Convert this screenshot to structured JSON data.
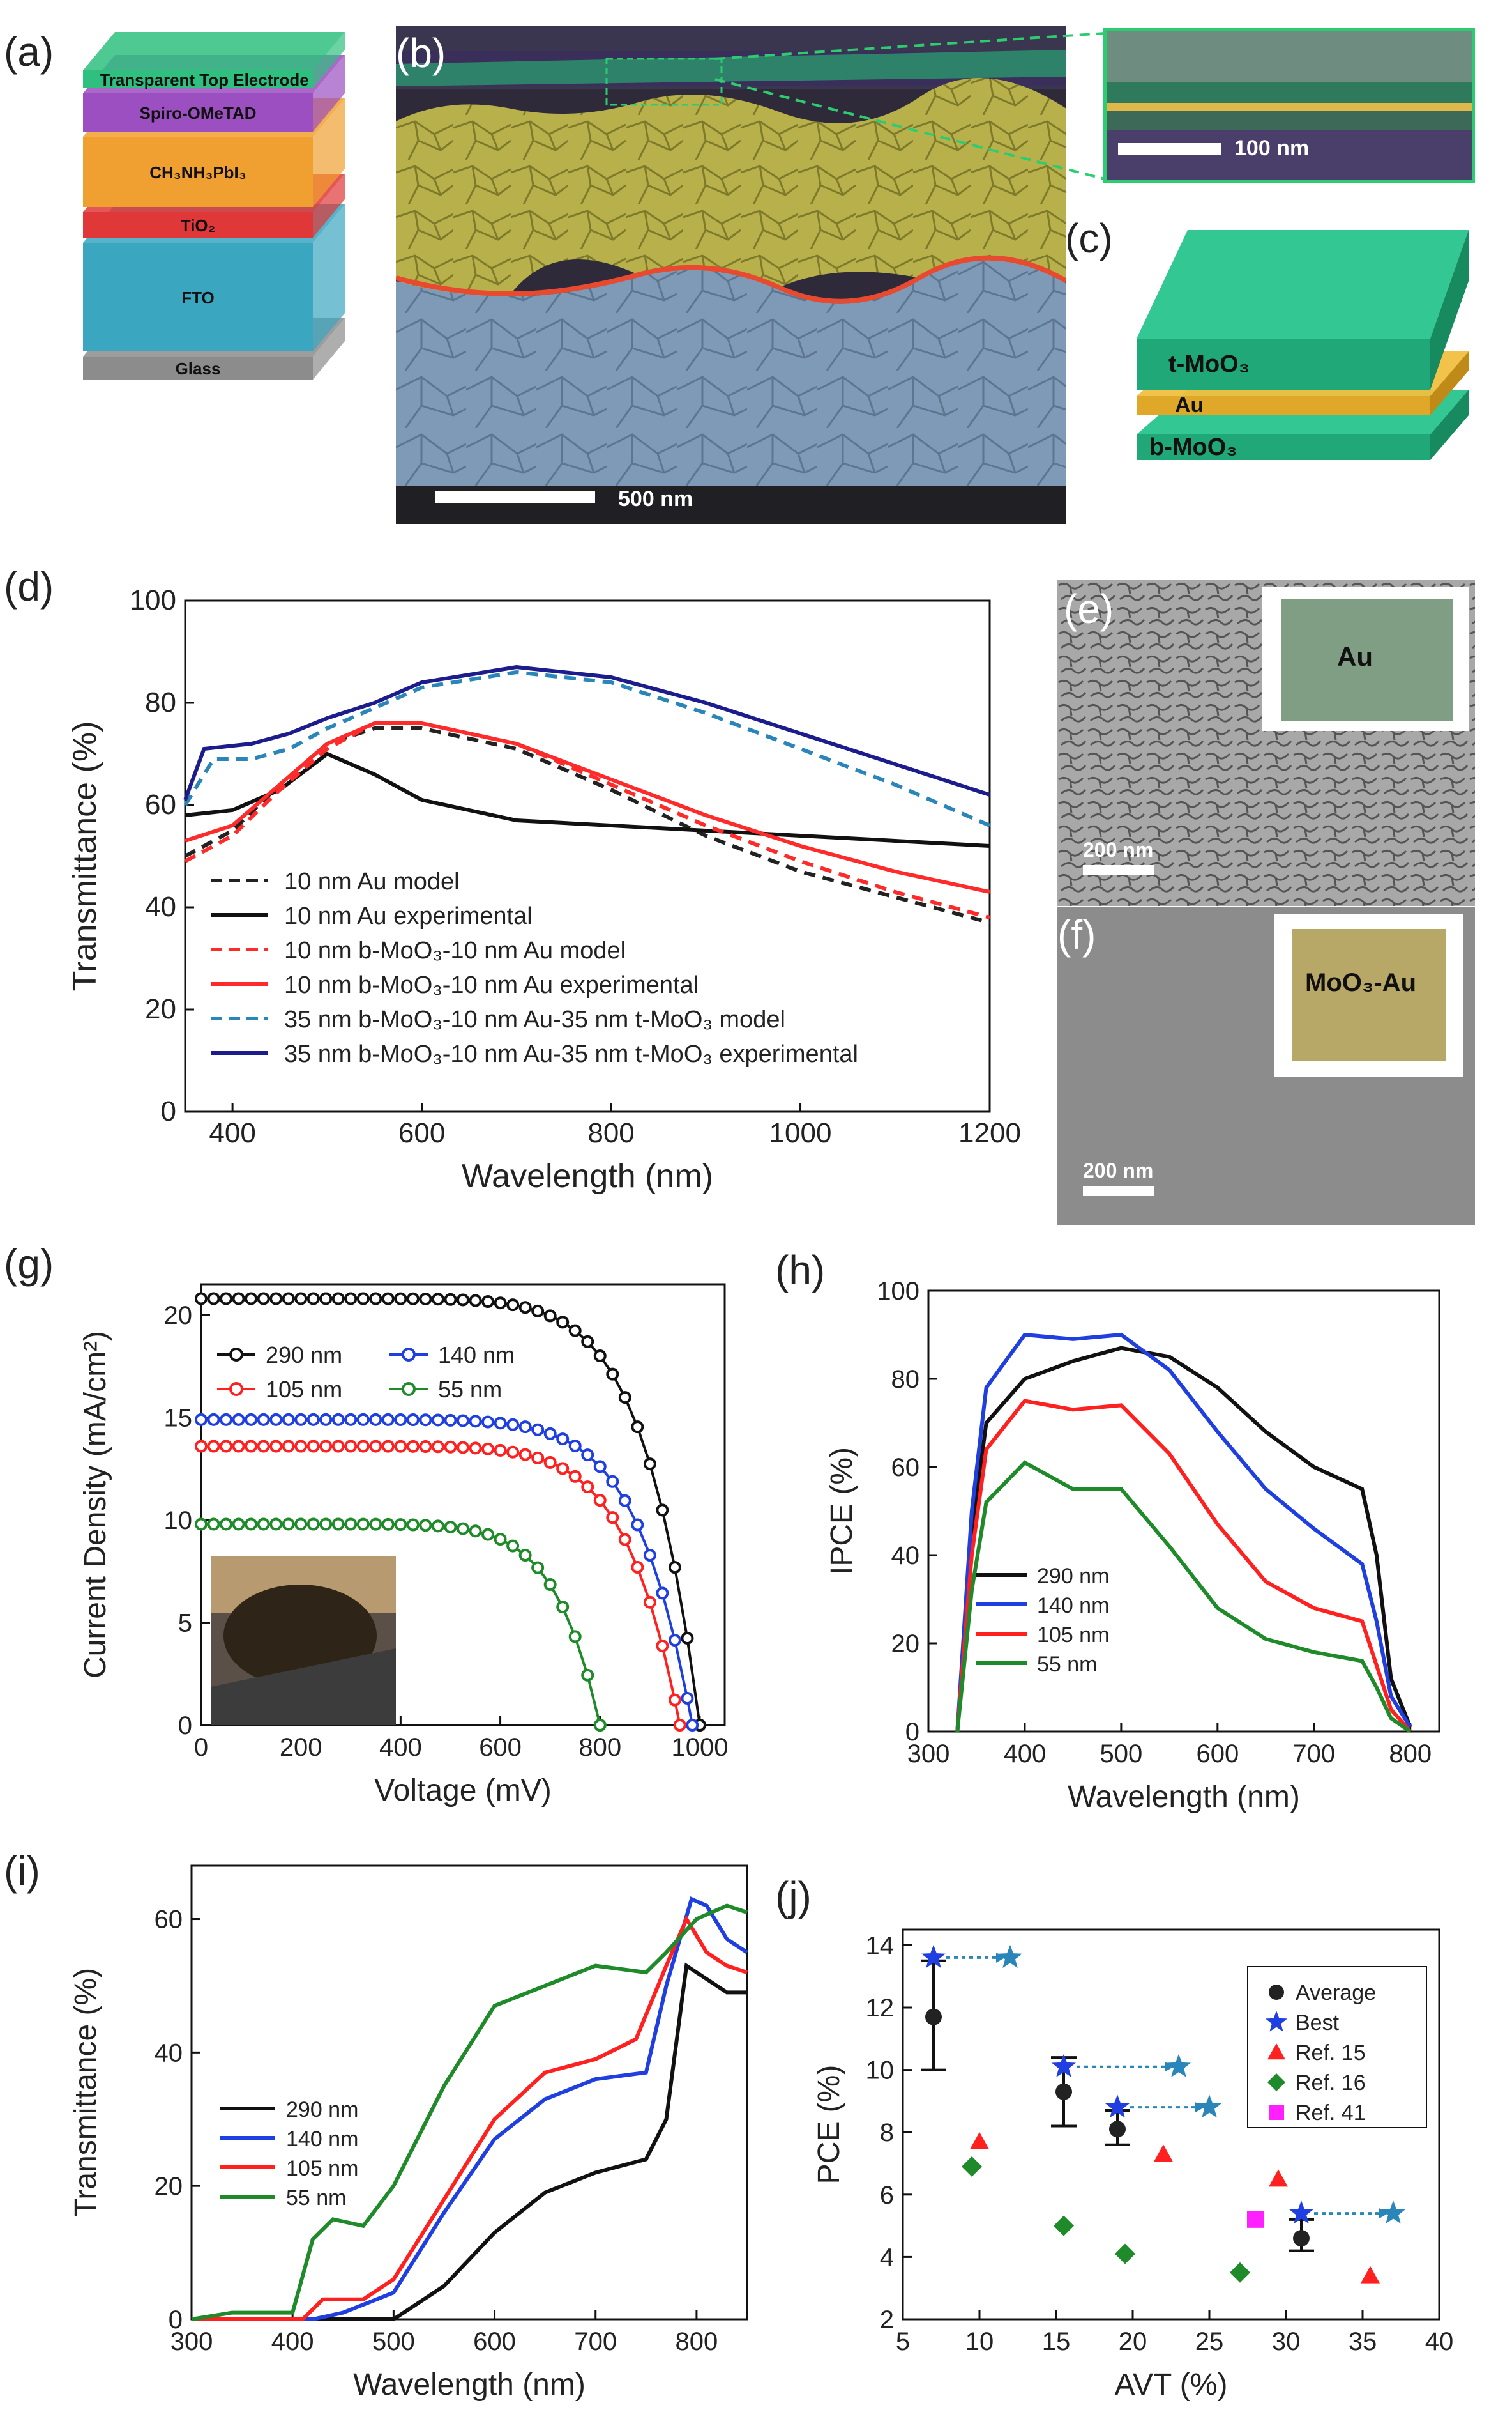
{
  "panels": {
    "a": {
      "letter": "(a)",
      "layers": [
        "Transparent Top Electrode",
        "Spiro-OMeTAD",
        "CH₃NH₃PbI₃",
        "TiO₂",
        "FTO",
        "Glass"
      ],
      "colors": [
        "#2fbf7e",
        "#9b4fc0",
        "#f0a030",
        "#e03838",
        "#3aa6c0",
        "#8c8c8c"
      ]
    },
    "b": {
      "letter": "(b)",
      "scale": "500 nm",
      "inset_scale": "100 nm"
    },
    "c": {
      "letter": "(c)",
      "layers": [
        "t-MoO₃",
        "Au",
        "b-MoO₃"
      ]
    },
    "e": {
      "letter": "(e)",
      "inset": "Au",
      "scale": "200 nm"
    },
    "f": {
      "letter": "(f)",
      "inset": "MoO₃-Au",
      "scale": "200 nm"
    }
  },
  "chart_data": [
    {
      "id": "d",
      "letter": "(d)",
      "type": "line",
      "xlabel": "Wavelength (nm)",
      "ylabel": "Transmittance (%)",
      "xlim": [
        350,
        1200
      ],
      "ylim": [
        0,
        100
      ],
      "xticks": [
        400,
        600,
        800,
        1000,
        1200
      ],
      "yticks": [
        0,
        20,
        40,
        60,
        80,
        100
      ],
      "series": [
        {
          "name": "10 nm Au model",
          "color": "#222222",
          "dash": true,
          "points": [
            [
              350,
              50
            ],
            [
              400,
              55
            ],
            [
              450,
              64
            ],
            [
              500,
              72
            ],
            [
              550,
              75
            ],
            [
              600,
              75
            ],
            [
              700,
              71
            ],
            [
              800,
              63
            ],
            [
              900,
              54
            ],
            [
              1000,
              47
            ],
            [
              1100,
              42
            ],
            [
              1200,
              37
            ]
          ]
        },
        {
          "name": "10 nm Au experimental",
          "color": "#111111",
          "dash": false,
          "points": [
            [
              350,
              58
            ],
            [
              400,
              59
            ],
            [
              450,
              63
            ],
            [
              500,
              70
            ],
            [
              550,
              66
            ],
            [
              600,
              61
            ],
            [
              700,
              57
            ],
            [
              800,
              56
            ],
            [
              900,
              55
            ],
            [
              1000,
              54
            ],
            [
              1100,
              53
            ],
            [
              1200,
              52
            ]
          ]
        },
        {
          "name": "10 nm b-MoO₃-10 nm Au model",
          "color": "#ff2a2a",
          "dash": true,
          "points": [
            [
              350,
              49
            ],
            [
              400,
              54
            ],
            [
              450,
              63
            ],
            [
              500,
              71
            ],
            [
              550,
              76
            ],
            [
              600,
              76
            ],
            [
              700,
              72
            ],
            [
              800,
              64
            ],
            [
              900,
              56
            ],
            [
              1000,
              49
            ],
            [
              1100,
              43
            ],
            [
              1200,
              38
            ]
          ]
        },
        {
          "name": "10 nm b-MoO₃-10 nm Au experimental",
          "color": "#ff2a2a",
          "dash": false,
          "points": [
            [
              350,
              53
            ],
            [
              400,
              56
            ],
            [
              450,
              64
            ],
            [
              500,
              72
            ],
            [
              550,
              76
            ],
            [
              600,
              76
            ],
            [
              700,
              72
            ],
            [
              800,
              65
            ],
            [
              900,
              58
            ],
            [
              1000,
              52
            ],
            [
              1100,
              47
            ],
            [
              1200,
              43
            ]
          ]
        },
        {
          "name": "35 nm b-MoO₃-10 nm Au-35 nm t-MoO₃ model",
          "color": "#2a86b8",
          "dash": true,
          "points": [
            [
              350,
              60
            ],
            [
              380,
              69
            ],
            [
              420,
              69
            ],
            [
              460,
              71
            ],
            [
              500,
              75
            ],
            [
              550,
              79
            ],
            [
              600,
              83
            ],
            [
              700,
              86
            ],
            [
              800,
              84
            ],
            [
              900,
              78
            ],
            [
              1000,
              71
            ],
            [
              1100,
              64
            ],
            [
              1200,
              56
            ]
          ]
        },
        {
          "name": "35 nm b-MoO₃-10 nm Au-35 nm t-MoO₃ experimental",
          "color": "#1c1c8c",
          "dash": false,
          "points": [
            [
              350,
              61
            ],
            [
              370,
              71
            ],
            [
              420,
              72
            ],
            [
              460,
              74
            ],
            [
              500,
              77
            ],
            [
              550,
              80
            ],
            [
              600,
              84
            ],
            [
              700,
              87
            ],
            [
              800,
              85
            ],
            [
              900,
              80
            ],
            [
              1000,
              74
            ],
            [
              1100,
              68
            ],
            [
              1200,
              62
            ]
          ]
        }
      ]
    },
    {
      "id": "g",
      "letter": "(g)",
      "type": "line",
      "xlabel": "Voltage (mV)",
      "ylabel": "Current Density (mA/cm²)",
      "xlim": [
        0,
        1050
      ],
      "ylim": [
        0,
        21.5
      ],
      "xticks": [
        0,
        200,
        400,
        600,
        800,
        1000
      ],
      "yticks": [
        0,
        5,
        10,
        15,
        20
      ],
      "series": [
        {
          "name": "290 nm",
          "color": "#111111",
          "jsc": 20.8,
          "voc": 1000
        },
        {
          "name": "140 nm",
          "color": "#1f3fe0",
          "jsc": 14.9,
          "voc": 985
        },
        {
          "name": "105 nm",
          "color": "#ff2020",
          "jsc": 13.6,
          "voc": 960
        },
        {
          "name": "55 nm",
          "color": "#1f8a2a",
          "jsc": 9.8,
          "voc": 800
        }
      ]
    },
    {
      "id": "h",
      "letter": "(h)",
      "type": "line",
      "xlabel": "Wavelength (nm)",
      "ylabel": "IPCE (%)",
      "xlim": [
        300,
        830
      ],
      "ylim": [
        0,
        100
      ],
      "xticks": [
        300,
        400,
        500,
        600,
        700,
        800
      ],
      "yticks": [
        0,
        20,
        40,
        60,
        80,
        100
      ],
      "series": [
        {
          "name": "290 nm",
          "color": "#111111",
          "points": [
            [
              330,
              0
            ],
            [
              345,
              45
            ],
            [
              360,
              70
            ],
            [
              400,
              80
            ],
            [
              450,
              84
            ],
            [
              500,
              87
            ],
            [
              550,
              85
            ],
            [
              600,
              78
            ],
            [
              650,
              68
            ],
            [
              700,
              60
            ],
            [
              750,
              55
            ],
            [
              765,
              40
            ],
            [
              780,
              12
            ],
            [
              800,
              1
            ]
          ]
        },
        {
          "name": "140 nm",
          "color": "#1f3fe0",
          "points": [
            [
              330,
              0
            ],
            [
              345,
              50
            ],
            [
              360,
              78
            ],
            [
              400,
              90
            ],
            [
              450,
              89
            ],
            [
              500,
              90
            ],
            [
              550,
              82
            ],
            [
              600,
              68
            ],
            [
              650,
              55
            ],
            [
              700,
              46
            ],
            [
              750,
              38
            ],
            [
              765,
              25
            ],
            [
              780,
              8
            ],
            [
              800,
              1
            ]
          ]
        },
        {
          "name": "105 nm",
          "color": "#ff2020",
          "points": [
            [
              330,
              0
            ],
            [
              345,
              40
            ],
            [
              360,
              64
            ],
            [
              400,
              75
            ],
            [
              450,
              73
            ],
            [
              500,
              74
            ],
            [
              550,
              63
            ],
            [
              600,
              47
            ],
            [
              650,
              34
            ],
            [
              700,
              28
            ],
            [
              750,
              25
            ],
            [
              765,
              15
            ],
            [
              780,
              5
            ],
            [
              800,
              0
            ]
          ]
        },
        {
          "name": "55 nm",
          "color": "#1f8a2a",
          "points": [
            [
              330,
              0
            ],
            [
              345,
              32
            ],
            [
              360,
              52
            ],
            [
              400,
              61
            ],
            [
              450,
              55
            ],
            [
              500,
              55
            ],
            [
              550,
              42
            ],
            [
              600,
              28
            ],
            [
              650,
              21
            ],
            [
              700,
              18
            ],
            [
              750,
              16
            ],
            [
              765,
              10
            ],
            [
              780,
              3
            ],
            [
              800,
              0
            ]
          ]
        }
      ]
    },
    {
      "id": "i",
      "letter": "(i)",
      "type": "line",
      "xlabel": "Wavelength (nm)",
      "ylabel": "Transmittance (%)",
      "xlim": [
        300,
        850
      ],
      "ylim": [
        0,
        68
      ],
      "xticks": [
        300,
        400,
        500,
        600,
        700,
        800
      ],
      "yticks": [
        0,
        20,
        40,
        60
      ],
      "series": [
        {
          "name": "290 nm",
          "color": "#111111",
          "points": [
            [
              300,
              0
            ],
            [
              450,
              0
            ],
            [
              500,
              0
            ],
            [
              550,
              5
            ],
            [
              600,
              13
            ],
            [
              650,
              19
            ],
            [
              700,
              22
            ],
            [
              750,
              24
            ],
            [
              770,
              30
            ],
            [
              790,
              53
            ],
            [
              810,
              51
            ],
            [
              830,
              49
            ],
            [
              850,
              49
            ]
          ]
        },
        {
          "name": "140 nm",
          "color": "#1f3fe0",
          "points": [
            [
              300,
              0
            ],
            [
              420,
              0
            ],
            [
              450,
              1
            ],
            [
              500,
              4
            ],
            [
              550,
              16
            ],
            [
              600,
              27
            ],
            [
              650,
              33
            ],
            [
              700,
              36
            ],
            [
              750,
              37
            ],
            [
              770,
              50
            ],
            [
              795,
              63
            ],
            [
              810,
              62
            ],
            [
              830,
              57
            ],
            [
              850,
              55
            ]
          ]
        },
        {
          "name": "105 nm",
          "color": "#ff2020",
          "points": [
            [
              300,
              0
            ],
            [
              410,
              0
            ],
            [
              430,
              3
            ],
            [
              470,
              3
            ],
            [
              500,
              6
            ],
            [
              550,
              18
            ],
            [
              600,
              30
            ],
            [
              650,
              37
            ],
            [
              700,
              39
            ],
            [
              740,
              42
            ],
            [
              770,
              53
            ],
            [
              790,
              60
            ],
            [
              810,
              55
            ],
            [
              830,
              53
            ],
            [
              850,
              52
            ]
          ]
        },
        {
          "name": "55 nm",
          "color": "#1f8a2a",
          "points": [
            [
              300,
              0
            ],
            [
              340,
              1
            ],
            [
              400,
              1
            ],
            [
              420,
              12
            ],
            [
              440,
              15
            ],
            [
              470,
              14
            ],
            [
              500,
              20
            ],
            [
              550,
              35
            ],
            [
              600,
              47
            ],
            [
              650,
              50
            ],
            [
              700,
              53
            ],
            [
              750,
              52
            ],
            [
              770,
              55
            ],
            [
              800,
              60
            ],
            [
              830,
              62
            ],
            [
              850,
              61
            ]
          ]
        }
      ]
    },
    {
      "id": "j",
      "letter": "(j)",
      "type": "scatter",
      "xlabel": "AVT (%)",
      "ylabel": "PCE (%)",
      "xlim": [
        5,
        40
      ],
      "ylim": [
        2,
        14.5
      ],
      "xticks": [
        5,
        10,
        15,
        20,
        25,
        30,
        35,
        40
      ],
      "yticks": [
        2,
        4,
        6,
        8,
        10,
        12,
        14
      ],
      "average": {
        "name": "Average",
        "color": "#111111",
        "points": [
          {
            "x": 7,
            "y": 11.7,
            "lo": 10.0,
            "hi": 13.5
          },
          {
            "x": 15.5,
            "y": 9.3,
            "lo": 8.2,
            "hi": 10.4
          },
          {
            "x": 19,
            "y": 8.1,
            "lo": 7.6,
            "hi": 8.7
          },
          {
            "x": 31,
            "y": 4.6,
            "lo": 4.2,
            "hi": 5.2
          }
        ]
      },
      "best": {
        "name": "Best",
        "color": "#1f3fe0",
        "points": [
          [
            7,
            13.6
          ],
          [
            15.5,
            10.1
          ],
          [
            19,
            8.8
          ],
          [
            31,
            5.4
          ]
        ]
      },
      "shifted": {
        "color": "#2a86b8",
        "points": [
          [
            12,
            13.6
          ],
          [
            23,
            10.1
          ],
          [
            25,
            8.8
          ],
          [
            37,
            5.4
          ]
        ]
      },
      "ref15": {
        "name": "Ref. 15",
        "color": "#ff2020",
        "points": [
          [
            10,
            7.7
          ],
          [
            22,
            7.3
          ],
          [
            29.5,
            6.5
          ],
          [
            35.5,
            3.4
          ]
        ]
      },
      "ref16": {
        "name": "Ref. 16",
        "color": "#1f8a2a",
        "points": [
          [
            9.5,
            6.9
          ],
          [
            15.5,
            5.0
          ],
          [
            19.5,
            4.1
          ],
          [
            27,
            3.5
          ]
        ]
      },
      "ref41": {
        "name": "Ref. 41",
        "color": "#ff20ff",
        "points": [
          [
            28,
            5.2
          ]
        ]
      }
    }
  ]
}
